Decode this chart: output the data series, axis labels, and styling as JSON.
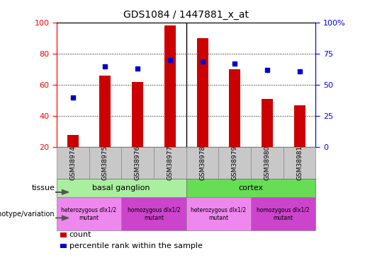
{
  "title": "GDS1084 / 1447881_x_at",
  "samples": [
    "GSM38974",
    "GSM38975",
    "GSM38976",
    "GSM38977",
    "GSM38978",
    "GSM38979",
    "GSM38980",
    "GSM38981"
  ],
  "counts": [
    28,
    66,
    62,
    98,
    90,
    70,
    51,
    47
  ],
  "percentiles": [
    40,
    65,
    63,
    70,
    69,
    67,
    62,
    61
  ],
  "ylim_left": [
    20,
    100
  ],
  "ylim_right": [
    0,
    100
  ],
  "yticks_left": [
    20,
    40,
    60,
    80,
    100
  ],
  "yticks_right": [
    0,
    25,
    50,
    75,
    100
  ],
  "yticklabels_right": [
    "0",
    "25",
    "50",
    "75",
    "100%"
  ],
  "bar_color": "#cc0000",
  "marker_color": "#0000cc",
  "tissue_groups": [
    {
      "label": "basal ganglion",
      "start": 0,
      "end": 3,
      "color": "#aaeea0"
    },
    {
      "label": "cortex",
      "start": 4,
      "end": 7,
      "color": "#66dd55"
    }
  ],
  "genotype_groups": [
    {
      "label": "heterozygous dlx1/2\nmutant",
      "start": 0,
      "end": 1,
      "color": "#ee88ee"
    },
    {
      "label": "homozygous dlx1/2\nmutant",
      "start": 2,
      "end": 3,
      "color": "#cc44cc"
    },
    {
      "label": "heterozygous dlx1/2\nmutant",
      "start": 4,
      "end": 5,
      "color": "#ee88ee"
    },
    {
      "label": "homozygous dlx1/2\nmutant",
      "start": 6,
      "end": 7,
      "color": "#cc44cc"
    }
  ],
  "tissue_label": "tissue",
  "genotype_label": "genotype/variation",
  "legend_count_label": "count",
  "legend_percentile_label": "percentile rank within the sample",
  "bar_width": 0.35
}
